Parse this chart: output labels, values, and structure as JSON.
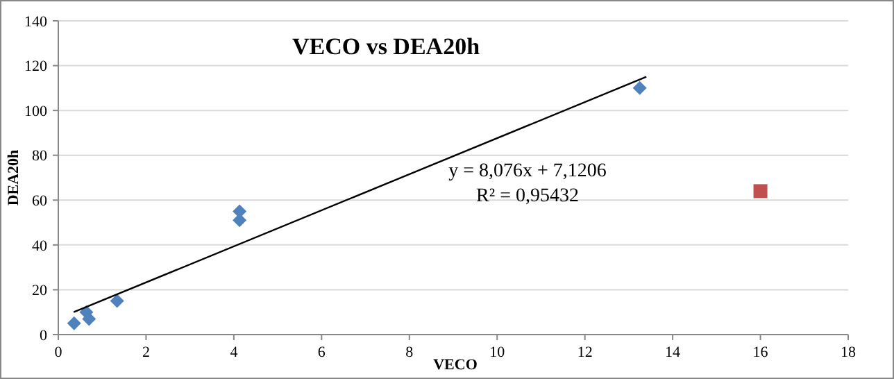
{
  "chart_data": {
    "type": "scatter",
    "title": "VECO vs DEA20h",
    "xlabel": "VECO",
    "ylabel": "DEA20h",
    "xlim": [
      0,
      18
    ],
    "xticks": [
      0,
      2,
      4,
      6,
      8,
      10,
      12,
      14,
      16,
      18
    ],
    "ylim": [
      0,
      140
    ],
    "yticks": [
      0,
      20,
      40,
      60,
      80,
      100,
      120,
      140
    ],
    "grid": "y",
    "series": [
      {
        "marker": "diamond",
        "color": "#4f81bd",
        "x": [
          0.36,
          0.64,
          0.7,
          1.34,
          4.13,
          4.13,
          13.25
        ],
        "values": [
          5,
          10,
          7,
          15,
          55,
          51,
          110
        ]
      },
      {
        "marker": "square",
        "color": "#c0504d",
        "x": [
          16
        ],
        "values": [
          64
        ]
      },
      {
        "type": "line",
        "marker": "none",
        "color": "#000000",
        "x": [
          0.35,
          13.4
        ],
        "values": [
          10,
          115
        ]
      }
    ],
    "annotations": [
      "y = 8,076x + 7,1206",
      "R² = 0,95432"
    ]
  }
}
